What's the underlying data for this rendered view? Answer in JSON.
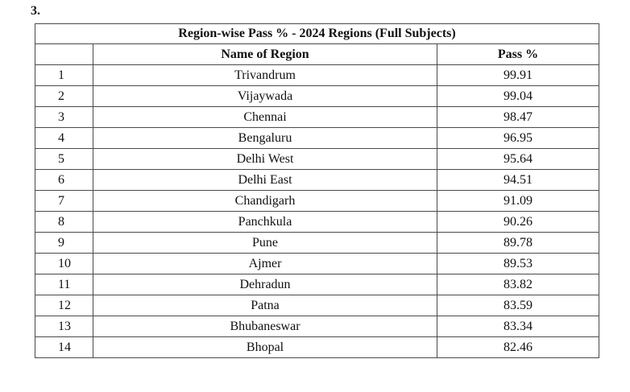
{
  "section_number": "3.",
  "table": {
    "title": "Region-wise Pass % - 2024 Regions (Full Subjects)",
    "headers": {
      "serial": "",
      "region": "Name of Region",
      "pass": "Pass %"
    },
    "rows": [
      {
        "sl": "1",
        "region": "Trivandrum",
        "pass": "99.91"
      },
      {
        "sl": "2",
        "region": "Vijaywada",
        "pass": "99.04"
      },
      {
        "sl": "3",
        "region": "Chennai",
        "pass": "98.47"
      },
      {
        "sl": "4",
        "region": "Bengaluru",
        "pass": "96.95"
      },
      {
        "sl": "5",
        "region": "Delhi West",
        "pass": "95.64"
      },
      {
        "sl": "6",
        "region": "Delhi East",
        "pass": "94.51"
      },
      {
        "sl": "7",
        "region": "Chandigarh",
        "pass": "91.09"
      },
      {
        "sl": "8",
        "region": "Panchkula",
        "pass": "90.26"
      },
      {
        "sl": "9",
        "region": "Pune",
        "pass": "89.78"
      },
      {
        "sl": "10",
        "region": "Ajmer",
        "pass": "89.53"
      },
      {
        "sl": "11",
        "region": "Dehradun",
        "pass": "83.82"
      },
      {
        "sl": "12",
        "region": "Patna",
        "pass": "83.59"
      },
      {
        "sl": "13",
        "region": "Bhubaneswar",
        "pass": "83.34"
      },
      {
        "sl": "14",
        "region": "Bhopal",
        "pass": "82.46"
      }
    ]
  }
}
